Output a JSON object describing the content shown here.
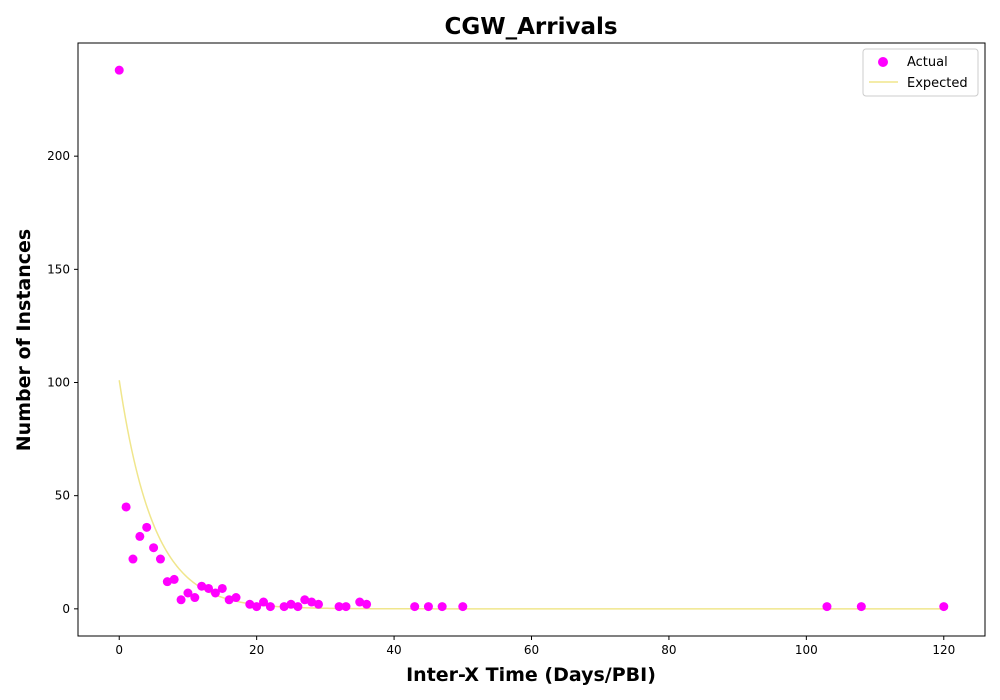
{
  "chart_data": {
    "type": "scatter",
    "title": "CGW_Arrivals",
    "xlabel": "Inter-X Time (Days/PBI)",
    "ylabel": "Number of Instances",
    "xlim": [
      -6,
      126
    ],
    "ylim": [
      -12,
      250
    ],
    "xticks": [
      0,
      20,
      40,
      60,
      80,
      100,
      120
    ],
    "yticks": [
      0,
      50,
      100,
      150,
      200
    ],
    "grid": false,
    "legend_position": "top-right",
    "series": [
      {
        "name": "Actual",
        "kind": "scatter",
        "color": "#ff00ff",
        "points": [
          [
            0,
            238
          ],
          [
            1,
            45
          ],
          [
            2,
            22
          ],
          [
            3,
            32
          ],
          [
            4,
            36
          ],
          [
            5,
            27
          ],
          [
            6,
            22
          ],
          [
            7,
            12
          ],
          [
            8,
            13
          ],
          [
            9,
            4
          ],
          [
            10,
            7
          ],
          [
            11,
            5
          ],
          [
            12,
            10
          ],
          [
            13,
            9
          ],
          [
            14,
            7
          ],
          [
            15,
            9
          ],
          [
            16,
            4
          ],
          [
            17,
            5
          ],
          [
            19,
            2
          ],
          [
            20,
            1
          ],
          [
            21,
            3
          ],
          [
            22,
            1
          ],
          [
            24,
            1
          ],
          [
            25,
            2
          ],
          [
            26,
            1
          ],
          [
            27,
            4
          ],
          [
            28,
            3
          ],
          [
            29,
            2
          ],
          [
            32,
            1
          ],
          [
            33,
            1
          ],
          [
            35,
            3
          ],
          [
            36,
            2
          ],
          [
            43,
            1
          ],
          [
            45,
            1
          ],
          [
            47,
            1
          ],
          [
            50,
            1
          ],
          [
            103,
            1
          ],
          [
            108,
            1
          ],
          [
            120,
            1
          ]
        ]
      },
      {
        "name": "Expected",
        "kind": "line",
        "color": "#f0e68c",
        "function": "exponential",
        "amplitude": 101,
        "rate": 0.2,
        "x_range": [
          0,
          120
        ]
      }
    ]
  }
}
